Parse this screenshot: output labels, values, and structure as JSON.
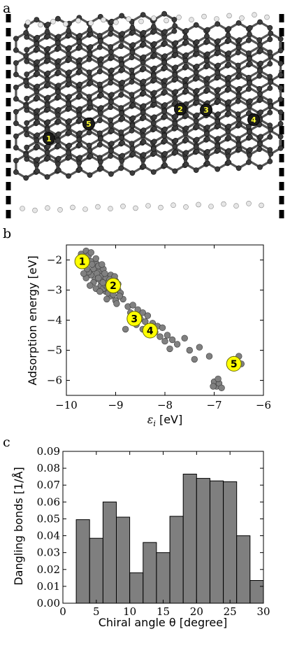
{
  "panel_a": {
    "letter": "a",
    "site_labels": [
      "1",
      "2",
      "3",
      "4",
      "5"
    ]
  },
  "chart_data": [
    {
      "panel": "b",
      "type": "scatter",
      "xlabel": "ε_i [eV]",
      "ylabel": "Adsorption energy [eV]",
      "xlim": [
        -10,
        -6
      ],
      "ylim": [
        -6.5,
        -1.5
      ],
      "xticks": [
        "−10",
        "−9",
        "−8",
        "−7",
        "−6"
      ],
      "yticks": [
        "−2",
        "−3",
        "−4",
        "−5",
        "−6"
      ],
      "point_color": "#808080",
      "highlight_color": "#ffff00",
      "cluster_points": [
        [
          -9.7,
          -1.8
        ],
        [
          -9.65,
          -2.0
        ],
        [
          -9.6,
          -1.7
        ],
        [
          -9.55,
          -1.85
        ],
        [
          -9.5,
          -2.05
        ],
        [
          -9.62,
          -2.2
        ],
        [
          -9.45,
          -2.3
        ],
        [
          -9.4,
          -2.1
        ],
        [
          -9.35,
          -2.4
        ],
        [
          -9.3,
          -2.55
        ],
        [
          -9.25,
          -2.3
        ],
        [
          -9.5,
          -2.5
        ],
        [
          -9.2,
          -2.6
        ],
        [
          -9.15,
          -2.75
        ],
        [
          -9.1,
          -2.5
        ],
        [
          -9.42,
          -2.65
        ],
        [
          -9.05,
          -2.9
        ],
        [
          -9.0,
          -2.7
        ],
        [
          -8.95,
          -3.0
        ],
        [
          -9.3,
          -2.85
        ],
        [
          -9.2,
          -3.05
        ],
        [
          -9.1,
          -3.2
        ],
        [
          -8.9,
          -3.1
        ],
        [
          -9.0,
          -3.35
        ],
        [
          -9.4,
          -2.95
        ],
        [
          -9.55,
          -2.4
        ],
        [
          -9.35,
          -2.2
        ],
        [
          -9.25,
          -2.95
        ],
        [
          -9.15,
          -3.1
        ],
        [
          -8.85,
          -3.3
        ],
        [
          -9.05,
          -3.15
        ],
        [
          -9.6,
          -2.6
        ],
        [
          -9.45,
          -2.75
        ],
        [
          -9.3,
          -2.7
        ],
        [
          -9.2,
          -2.85
        ],
        [
          -8.95,
          -2.8
        ],
        [
          -9.1,
          -2.95
        ],
        [
          -9.48,
          -2.15
        ],
        [
          -9.58,
          -2.3
        ],
        [
          -9.38,
          -2.45
        ],
        [
          -9.28,
          -2.15
        ],
        [
          -9.22,
          -2.45
        ],
        [
          -9.12,
          -2.65
        ],
        [
          -9.02,
          -2.55
        ],
        [
          -8.92,
          -3.2
        ],
        [
          -9.32,
          -3.05
        ],
        [
          -9.52,
          -2.85
        ],
        [
          -9.18,
          -3.3
        ],
        [
          -9.65,
          -2.45
        ],
        [
          -9.05,
          -3.0
        ],
        [
          -8.98,
          -3.45
        ],
        [
          -9.4,
          -1.95
        ],
        [
          -9.5,
          -1.75
        ],
        [
          -9.35,
          -2.6
        ],
        [
          -9.26,
          -2.75
        ],
        [
          -9.16,
          -2.9
        ]
      ],
      "tail_points": [
        [
          -8.75,
          -3.55
        ],
        [
          -8.65,
          -3.5
        ],
        [
          -8.55,
          -3.65
        ],
        [
          -8.45,
          -3.75
        ],
        [
          -8.6,
          -3.9
        ],
        [
          -8.5,
          -3.95
        ],
        [
          -8.4,
          -4.05
        ],
        [
          -8.35,
          -3.85
        ],
        [
          -8.25,
          -4.1
        ],
        [
          -8.15,
          -4.2
        ],
        [
          -8.3,
          -4.3
        ],
        [
          -8.2,
          -4.4
        ],
        [
          -8.05,
          -4.25
        ],
        [
          -7.95,
          -4.5
        ],
        [
          -8.1,
          -4.55
        ],
        [
          -8.0,
          -4.7
        ],
        [
          -7.85,
          -4.65
        ],
        [
          -7.75,
          -4.8
        ],
        [
          -7.9,
          -4.95
        ],
        [
          -7.6,
          -4.6
        ],
        [
          -7.5,
          -5.0
        ],
        [
          -7.3,
          -4.9
        ],
        [
          -7.1,
          -5.2
        ],
        [
          -8.8,
          -4.3
        ],
        [
          -8.7,
          -3.75
        ],
        [
          -8.58,
          -4.15
        ],
        [
          -8.45,
          -4.3
        ],
        [
          -7.4,
          -5.3
        ],
        [
          -7.0,
          -6.05
        ],
        [
          -6.95,
          -6.2
        ],
        [
          -6.9,
          -6.1
        ],
        [
          -6.85,
          -6.25
        ],
        [
          -6.92,
          -5.95
        ],
        [
          -7.02,
          -6.2
        ],
        [
          -6.6,
          -5.3
        ],
        [
          -6.5,
          -5.2
        ],
        [
          -6.45,
          -5.45
        ],
        [
          -6.55,
          -5.5
        ]
      ],
      "highlights": [
        {
          "label": "1",
          "x": -9.68,
          "y": -2.05
        },
        {
          "label": "2",
          "x": -9.05,
          "y": -2.85
        },
        {
          "label": "3",
          "x": -8.62,
          "y": -3.95
        },
        {
          "label": "4",
          "x": -8.3,
          "y": -4.35
        },
        {
          "label": "5",
          "x": -6.6,
          "y": -5.45
        }
      ]
    },
    {
      "panel": "c",
      "type": "bar",
      "xlabel": "Chiral angle θ [degree]",
      "ylabel": "Dangling bonds [1/Å]",
      "xlim": [
        0,
        30
      ],
      "ylim": [
        0,
        0.09
      ],
      "xticks": [
        "0",
        "5",
        "10",
        "15",
        "20",
        "25",
        "30"
      ],
      "yticks": [
        "0.00",
        "0.01",
        "0.02",
        "0.03",
        "0.04",
        "0.05",
        "0.06",
        "0.07",
        "0.08",
        "0.09"
      ],
      "bin_width": 2,
      "bins": [
        2,
        4,
        6,
        8,
        10,
        12,
        14,
        16,
        18,
        20,
        22,
        24,
        26,
        28
      ],
      "values": [
        0.0495,
        0.0385,
        0.06,
        0.051,
        0.018,
        0.036,
        0.03,
        0.0515,
        0.0765,
        0.074,
        0.0725,
        0.072,
        0.04,
        0.0135
      ],
      "bar_color": "#7f7f7f"
    }
  ],
  "letters": {
    "b": "b",
    "c": "c"
  }
}
